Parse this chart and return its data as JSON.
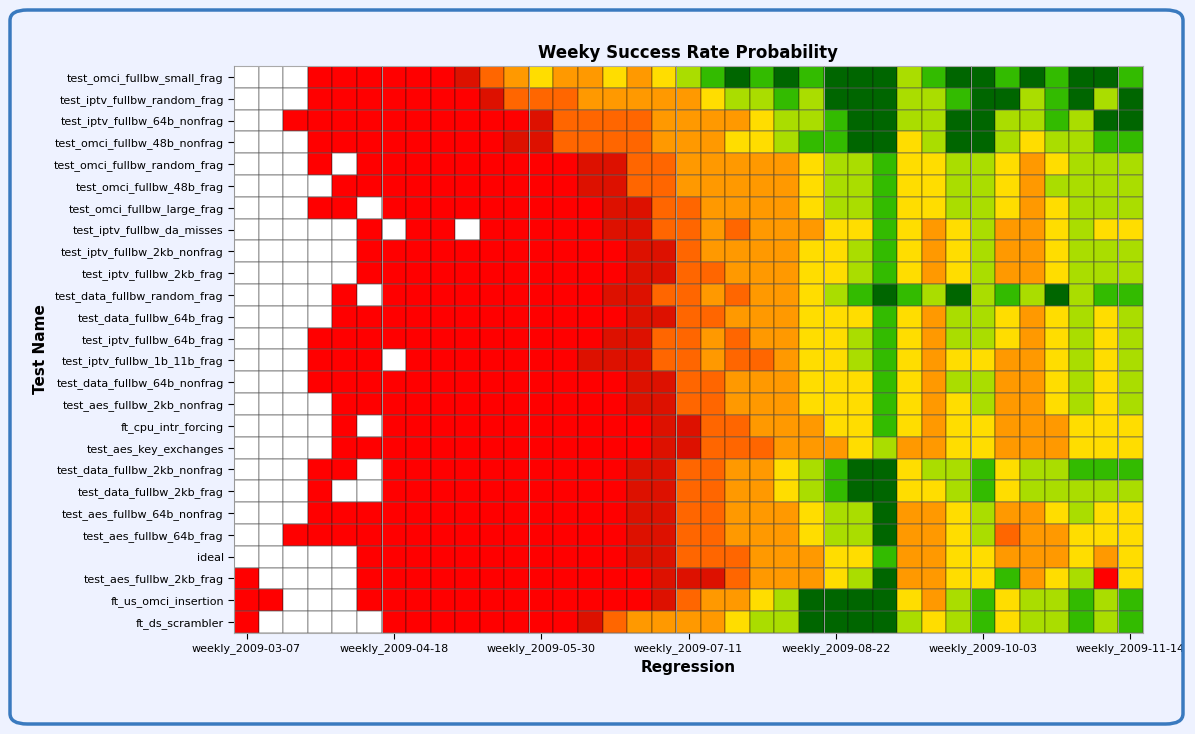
{
  "title": "Weeky Success Rate Probability",
  "xlabel": "Regression",
  "ylabel": "Test Name",
  "test_names": [
    "test_omci_fullbw_small_frag",
    "test_iptv_fullbw_random_frag",
    "test_iptv_fullbw_64b_nonfrag",
    "test_omci_fullbw_48b_nonfrag",
    "test_omci_fullbw_random_frag",
    "test_omci_fullbw_48b_frag",
    "test_omci_fullbw_large_frag",
    "test_iptv_fullbw_da_misses",
    "test_iptv_fullbw_2kb_nonfrag",
    "test_iptv_fullbw_2kb_frag",
    "test_data_fullbw_random_frag",
    "test_data_fullbw_64b_frag",
    "test_iptv_fullbw_64b_frag",
    "test_iptv_fullbw_1b_11b_frag",
    "test_data_fullbw_64b_nonfrag",
    "test_aes_fullbw_2kb_nonfrag",
    "ft_cpu_intr_forcing",
    "test_aes_key_exchanges",
    "test_data_fullbw_2kb_nonfrag",
    "test_data_fullbw_2kb_frag",
    "test_aes_fullbw_64b_nonfrag",
    "test_aes_fullbw_64b_frag",
    "ideal",
    "test_aes_fullbw_2kb_frag",
    "ft_us_omci_insertion",
    "ft_ds_scrambler"
  ],
  "x_labels": [
    "weekly_2009-03-07",
    "weekly_2009-04-18",
    "weekly_2009-05-30",
    "weekly_2009-07-11",
    "weekly_2009-08-22",
    "weekly_2009-10-03",
    "weekly_2009-11-14"
  ],
  "background_color": "#eef2ff",
  "border_color": "#3a7abf",
  "color_map_vals": [
    -1,
    0,
    1,
    2,
    3,
    4,
    5,
    6,
    7
  ],
  "color_map_colors": [
    "#ffffff",
    "#ff0000",
    "#dd1100",
    "#ff6600",
    "#ff9900",
    "#ffdd00",
    "#aadd00",
    "#33bb00",
    "#006600"
  ],
  "heatmap": [
    [
      -1,
      -1,
      -1,
      0,
      0,
      0,
      0,
      0,
      0,
      1,
      2,
      3,
      4,
      3,
      3,
      4,
      3,
      4,
      5,
      6,
      7,
      6,
      7,
      6,
      7,
      7,
      7,
      5,
      6,
      7,
      7,
      6,
      7,
      6,
      7,
      7,
      6
    ],
    [
      -1,
      -1,
      -1,
      0,
      0,
      0,
      0,
      0,
      0,
      0,
      1,
      2,
      2,
      2,
      3,
      3,
      3,
      3,
      3,
      4,
      5,
      5,
      6,
      5,
      7,
      7,
      7,
      5,
      5,
      6,
      7,
      7,
      5,
      6,
      7,
      5,
      7
    ],
    [
      -1,
      -1,
      0,
      0,
      0,
      0,
      0,
      0,
      0,
      0,
      0,
      0,
      1,
      2,
      2,
      2,
      2,
      3,
      3,
      3,
      3,
      4,
      5,
      5,
      6,
      7,
      7,
      5,
      5,
      7,
      7,
      5,
      5,
      6,
      5,
      7,
      7
    ],
    [
      -1,
      -1,
      -1,
      0,
      0,
      0,
      0,
      0,
      0,
      0,
      0,
      1,
      1,
      2,
      2,
      2,
      2,
      3,
      3,
      3,
      4,
      4,
      5,
      6,
      6,
      7,
      7,
      4,
      5,
      7,
      7,
      5,
      4,
      5,
      5,
      6,
      6
    ],
    [
      -1,
      -1,
      -1,
      0,
      -1,
      0,
      0,
      0,
      0,
      0,
      0,
      0,
      0,
      0,
      1,
      1,
      2,
      2,
      3,
      3,
      3,
      3,
      3,
      4,
      5,
      5,
      6,
      4,
      4,
      5,
      5,
      4,
      3,
      4,
      5,
      5,
      5
    ],
    [
      -1,
      -1,
      -1,
      -1,
      0,
      0,
      0,
      0,
      0,
      0,
      0,
      0,
      0,
      0,
      1,
      1,
      2,
      2,
      3,
      3,
      3,
      3,
      3,
      4,
      5,
      5,
      6,
      4,
      4,
      5,
      5,
      4,
      3,
      5,
      5,
      5,
      5
    ],
    [
      -1,
      -1,
      -1,
      0,
      0,
      -1,
      0,
      0,
      0,
      0,
      0,
      0,
      0,
      0,
      0,
      1,
      1,
      2,
      2,
      3,
      3,
      3,
      3,
      4,
      5,
      5,
      6,
      4,
      4,
      5,
      5,
      4,
      3,
      4,
      5,
      5,
      5
    ],
    [
      -1,
      -1,
      -1,
      -1,
      -1,
      0,
      -1,
      0,
      0,
      -1,
      0,
      0,
      0,
      0,
      0,
      1,
      1,
      2,
      2,
      3,
      2,
      3,
      3,
      3,
      4,
      4,
      6,
      4,
      3,
      4,
      5,
      3,
      3,
      4,
      5,
      4,
      4
    ],
    [
      -1,
      -1,
      -1,
      -1,
      -1,
      0,
      0,
      0,
      0,
      0,
      0,
      0,
      0,
      0,
      0,
      0,
      1,
      1,
      2,
      3,
      3,
      3,
      3,
      4,
      4,
      5,
      6,
      4,
      3,
      4,
      5,
      3,
      3,
      4,
      5,
      5,
      5
    ],
    [
      -1,
      -1,
      -1,
      -1,
      -1,
      0,
      0,
      0,
      0,
      0,
      0,
      0,
      0,
      0,
      0,
      0,
      1,
      1,
      2,
      2,
      3,
      3,
      3,
      4,
      4,
      5,
      6,
      4,
      3,
      4,
      5,
      3,
      3,
      4,
      5,
      5,
      5
    ],
    [
      -1,
      -1,
      -1,
      -1,
      0,
      -1,
      0,
      0,
      0,
      0,
      0,
      0,
      0,
      0,
      0,
      1,
      1,
      2,
      2,
      3,
      2,
      3,
      3,
      4,
      5,
      6,
      7,
      6,
      5,
      7,
      5,
      6,
      5,
      7,
      5,
      6,
      6
    ],
    [
      -1,
      -1,
      -1,
      -1,
      0,
      0,
      0,
      0,
      0,
      0,
      0,
      0,
      0,
      0,
      0,
      0,
      1,
      1,
      2,
      2,
      3,
      3,
      3,
      4,
      4,
      4,
      6,
      4,
      3,
      5,
      5,
      4,
      3,
      4,
      5,
      4,
      5
    ],
    [
      -1,
      -1,
      -1,
      0,
      0,
      0,
      0,
      0,
      0,
      0,
      0,
      0,
      0,
      0,
      0,
      1,
      1,
      2,
      2,
      3,
      2,
      3,
      3,
      4,
      4,
      5,
      6,
      4,
      3,
      5,
      5,
      4,
      3,
      4,
      5,
      4,
      5
    ],
    [
      -1,
      -1,
      -1,
      0,
      0,
      0,
      -1,
      0,
      0,
      0,
      0,
      0,
      0,
      0,
      1,
      1,
      1,
      2,
      2,
      3,
      2,
      2,
      3,
      4,
      4,
      5,
      6,
      4,
      3,
      4,
      4,
      3,
      3,
      4,
      5,
      4,
      5
    ],
    [
      -1,
      -1,
      -1,
      0,
      0,
      0,
      0,
      0,
      0,
      0,
      0,
      0,
      0,
      0,
      0,
      0,
      1,
      1,
      2,
      2,
      3,
      3,
      3,
      4,
      4,
      4,
      6,
      4,
      3,
      5,
      5,
      3,
      3,
      4,
      5,
      4,
      5
    ],
    [
      -1,
      -1,
      -1,
      -1,
      0,
      0,
      0,
      0,
      0,
      0,
      0,
      0,
      0,
      0,
      0,
      0,
      1,
      1,
      2,
      2,
      3,
      3,
      3,
      4,
      4,
      4,
      6,
      4,
      3,
      4,
      5,
      3,
      3,
      4,
      5,
      4,
      5
    ],
    [
      -1,
      -1,
      -1,
      -1,
      0,
      -1,
      0,
      0,
      0,
      0,
      0,
      0,
      0,
      0,
      0,
      0,
      0,
      1,
      1,
      2,
      2,
      3,
      3,
      3,
      4,
      4,
      6,
      4,
      3,
      4,
      4,
      3,
      3,
      3,
      4,
      4,
      4
    ],
    [
      -1,
      -1,
      -1,
      -1,
      0,
      0,
      0,
      0,
      0,
      0,
      0,
      0,
      0,
      0,
      0,
      0,
      0,
      1,
      1,
      2,
      2,
      2,
      3,
      3,
      3,
      4,
      5,
      3,
      3,
      4,
      4,
      3,
      3,
      3,
      4,
      4,
      4
    ],
    [
      -1,
      -1,
      -1,
      0,
      0,
      -1,
      0,
      0,
      0,
      0,
      0,
      0,
      0,
      0,
      0,
      0,
      1,
      1,
      2,
      2,
      3,
      3,
      4,
      5,
      6,
      7,
      7,
      4,
      5,
      5,
      6,
      4,
      5,
      5,
      6,
      6,
      6
    ],
    [
      -1,
      -1,
      -1,
      0,
      -1,
      -1,
      0,
      0,
      0,
      0,
      0,
      0,
      0,
      0,
      0,
      0,
      1,
      1,
      2,
      2,
      3,
      3,
      4,
      5,
      6,
      7,
      7,
      4,
      4,
      5,
      6,
      4,
      5,
      5,
      5,
      5,
      5
    ],
    [
      -1,
      -1,
      -1,
      0,
      0,
      0,
      0,
      0,
      0,
      0,
      0,
      0,
      0,
      0,
      0,
      0,
      1,
      1,
      2,
      2,
      3,
      3,
      3,
      4,
      5,
      5,
      7,
      3,
      3,
      4,
      5,
      3,
      3,
      4,
      5,
      4,
      4
    ],
    [
      -1,
      -1,
      0,
      0,
      0,
      0,
      0,
      0,
      0,
      0,
      0,
      0,
      0,
      0,
      0,
      0,
      1,
      1,
      2,
      2,
      3,
      3,
      3,
      4,
      5,
      5,
      7,
      3,
      3,
      4,
      5,
      2,
      3,
      3,
      4,
      4,
      4
    ],
    [
      -1,
      -1,
      -1,
      -1,
      -1,
      0,
      0,
      0,
      0,
      0,
      0,
      0,
      0,
      0,
      0,
      0,
      1,
      1,
      2,
      2,
      2,
      3,
      3,
      3,
      4,
      4,
      6,
      3,
      3,
      4,
      4,
      3,
      3,
      3,
      4,
      3,
      4
    ],
    [
      0,
      -1,
      -1,
      -1,
      -1,
      0,
      0,
      0,
      0,
      0,
      0,
      0,
      0,
      0,
      0,
      0,
      0,
      1,
      1,
      1,
      2,
      3,
      3,
      3,
      4,
      5,
      7,
      3,
      3,
      4,
      4,
      6,
      3,
      4,
      5,
      0,
      4
    ],
    [
      0,
      0,
      -1,
      -1,
      -1,
      0,
      0,
      0,
      0,
      0,
      0,
      0,
      0,
      0,
      0,
      0,
      0,
      1,
      2,
      3,
      3,
      4,
      5,
      7,
      7,
      7,
      7,
      4,
      3,
      5,
      6,
      4,
      5,
      5,
      6,
      5,
      6
    ],
    [
      0,
      -1,
      -1,
      -1,
      -1,
      -1,
      0,
      0,
      0,
      0,
      0,
      0,
      0,
      0,
      1,
      2,
      3,
      3,
      3,
      3,
      4,
      5,
      5,
      7,
      7,
      7,
      7,
      5,
      4,
      5,
      6,
      4,
      5,
      5,
      6,
      5,
      6
    ]
  ],
  "x_tick_positions": [
    0,
    6,
    12,
    18,
    24,
    30,
    36
  ],
  "n_cols": 37
}
